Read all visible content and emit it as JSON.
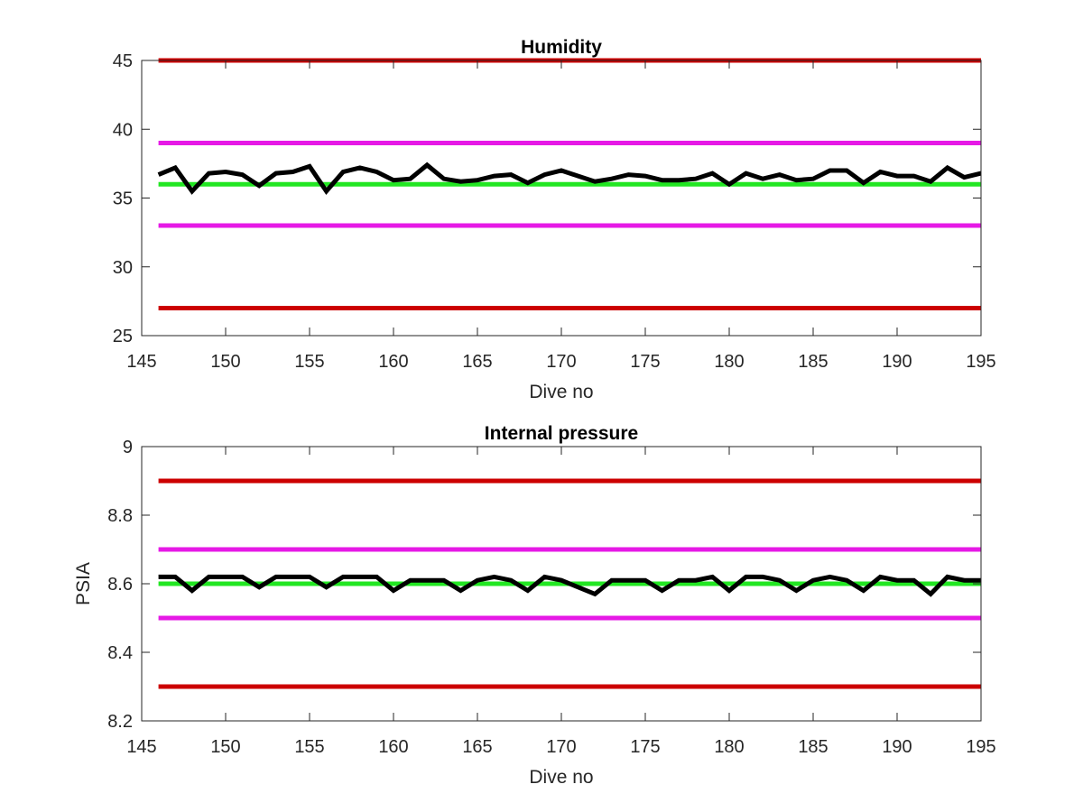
{
  "chart_data": [
    {
      "type": "line",
      "title": "Humidity",
      "xlabel": "Dive no",
      "ylabel": "",
      "xlim": [
        145,
        195
      ],
      "ylim": [
        25,
        45
      ],
      "xticks": [
        145,
        150,
        155,
        160,
        165,
        170,
        175,
        180,
        185,
        190,
        195
      ],
      "yticks": [
        25,
        30,
        35,
        40,
        45
      ],
      "grid": false,
      "reference_lines": [
        {
          "y": 45,
          "color": "#cc0000"
        },
        {
          "y": 39,
          "color": "#e619e6"
        },
        {
          "y": 36,
          "color": "#22e622"
        },
        {
          "y": 33,
          "color": "#e619e6"
        },
        {
          "y": 27,
          "color": "#cc0000"
        }
      ],
      "reference_x_range": [
        146,
        195
      ],
      "series": [
        {
          "color": "#000000",
          "x": [
            146,
            147,
            148,
            149,
            150,
            151,
            152,
            153,
            154,
            155,
            156,
            157,
            158,
            159,
            160,
            161,
            162,
            163,
            164,
            165,
            166,
            167,
            168,
            169,
            170,
            171,
            172,
            173,
            174,
            175,
            176,
            177,
            178,
            179,
            180,
            181,
            182,
            183,
            184,
            185,
            186,
            187,
            188,
            189,
            190,
            191,
            192,
            193,
            194,
            195
          ],
          "values": [
            36.7,
            37.2,
            35.5,
            36.8,
            36.9,
            36.7,
            35.9,
            36.8,
            36.9,
            37.3,
            35.5,
            36.9,
            37.2,
            36.9,
            36.3,
            36.4,
            37.4,
            36.4,
            36.2,
            36.3,
            36.6,
            36.7,
            36.1,
            36.7,
            37.0,
            36.6,
            36.2,
            36.4,
            36.7,
            36.6,
            36.3,
            36.3,
            36.4,
            36.8,
            36.0,
            36.8,
            36.4,
            36.7,
            36.3,
            36.4,
            37.0,
            37.0,
            36.1,
            36.9,
            36.6,
            36.6,
            36.2,
            37.2,
            36.5,
            36.8
          ]
        }
      ]
    },
    {
      "type": "line",
      "title": "Internal pressure",
      "xlabel": "Dive no",
      "ylabel": "PSIA",
      "xlim": [
        145,
        195
      ],
      "ylim": [
        8.2,
        9.0
      ],
      "xticks": [
        145,
        150,
        155,
        160,
        165,
        170,
        175,
        180,
        185,
        190,
        195
      ],
      "yticks": [
        8.2,
        8.4,
        8.6,
        8.8,
        9.0
      ],
      "ytick_labels": [
        "8.2",
        "8.4",
        "8.6",
        "8.8",
        "9"
      ],
      "grid": false,
      "reference_lines": [
        {
          "y": 8.9,
          "color": "#cc0000"
        },
        {
          "y": 8.7,
          "color": "#e619e6"
        },
        {
          "y": 8.6,
          "color": "#22e622"
        },
        {
          "y": 8.5,
          "color": "#e619e6"
        },
        {
          "y": 8.3,
          "color": "#cc0000"
        }
      ],
      "reference_x_range": [
        146,
        195
      ],
      "series": [
        {
          "color": "#000000",
          "x": [
            146,
            147,
            148,
            149,
            150,
            151,
            152,
            153,
            154,
            155,
            156,
            157,
            158,
            159,
            160,
            161,
            162,
            163,
            164,
            165,
            166,
            167,
            168,
            169,
            170,
            171,
            172,
            173,
            174,
            175,
            176,
            177,
            178,
            179,
            180,
            181,
            182,
            183,
            184,
            185,
            186,
            187,
            188,
            189,
            190,
            191,
            192,
            193,
            194,
            195
          ],
          "values": [
            8.62,
            8.62,
            8.58,
            8.62,
            8.62,
            8.62,
            8.59,
            8.62,
            8.62,
            8.62,
            8.59,
            8.62,
            8.62,
            8.62,
            8.58,
            8.61,
            8.61,
            8.61,
            8.58,
            8.61,
            8.62,
            8.61,
            8.58,
            8.62,
            8.61,
            8.59,
            8.57,
            8.61,
            8.61,
            8.61,
            8.58,
            8.61,
            8.61,
            8.62,
            8.58,
            8.62,
            8.62,
            8.61,
            8.58,
            8.61,
            8.62,
            8.61,
            8.58,
            8.62,
            8.61,
            8.61,
            8.57,
            8.62,
            8.61,
            8.61
          ]
        }
      ]
    }
  ]
}
